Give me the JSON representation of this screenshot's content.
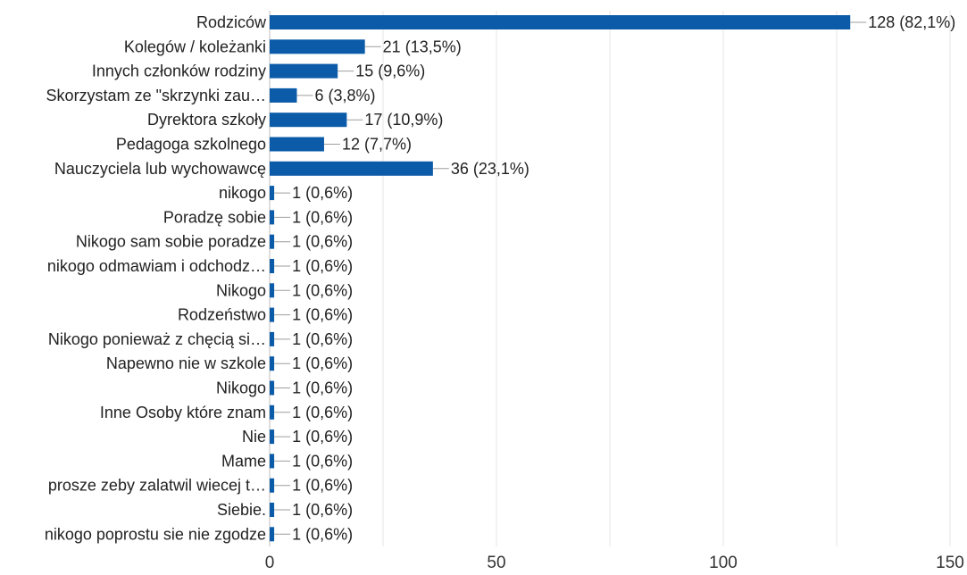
{
  "chart_data": {
    "type": "bar",
    "orientation": "horizontal",
    "categories": [
      "Rodziców",
      "Kolegów / koleżanki",
      "Innych członków rodziny",
      "Skorzystam ze \"skrzynki zau…",
      "Dyrektora szkoły",
      "Pedagoga szkolnego",
      "Nauczyciela lub wychowawcę",
      "nikogo",
      "Poradzę sobie",
      "Nikogo sam sobie poradze",
      "nikogo odmawiam i odchodz…",
      "Nikogo",
      "Rodzeństwo",
      "Nikogo ponieważ z chęcią si…",
      "Napewno nie w szkole",
      "Nikogo",
      "Inne Osoby które znam",
      "Nie",
      "Mame",
      "prosze zeby zalatwil wiecej t…",
      "Siebie.",
      "nikogo poprostu sie nie zgodze"
    ],
    "values": [
      128,
      21,
      15,
      6,
      17,
      12,
      36,
      1,
      1,
      1,
      1,
      1,
      1,
      1,
      1,
      1,
      1,
      1,
      1,
      1,
      1,
      1
    ],
    "data_labels": [
      "128 (82,1%)",
      "21 (13,5%)",
      "15 (9,6%)",
      "6 (3,8%)",
      "17 (10,9%)",
      "12 (7,7%)",
      "36 (23,1%)",
      "1 (0,6%)",
      "1 (0,6%)",
      "1 (0,6%)",
      "1 (0,6%)",
      "1 (0,6%)",
      "1 (0,6%)",
      "1 (0,6%)",
      "1 (0,6%)",
      "1 (0,6%)",
      "1 (0,6%)",
      "1 (0,6%)",
      "1 (0,6%)",
      "1 (0,6%)",
      "1 (0,6%)",
      "1 (0,6%)"
    ],
    "xticks": [
      "0",
      "50",
      "100",
      "150"
    ],
    "xlim": [
      0,
      150
    ],
    "grid": true,
    "bar_color": "#0b5ba8",
    "grid_color": "#e6e6e6"
  }
}
